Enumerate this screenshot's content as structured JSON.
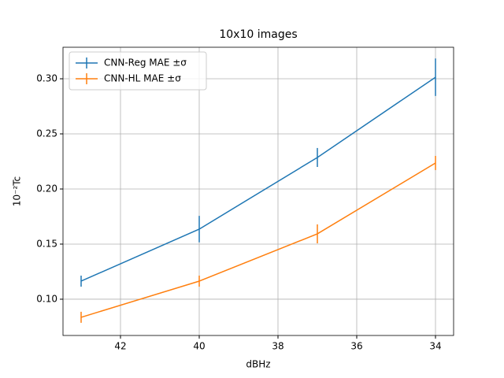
{
  "chart_data": {
    "type": "errorline",
    "title": "10x10 images",
    "x_label": "dBHz",
    "y_label": "10⁻²Tc",
    "x": [
      43,
      40,
      37,
      34
    ],
    "series": [
      {
        "name": "CNN-Reg MAE ±σ",
        "color": "#1f77b4",
        "values": [
          0.1164,
          0.1636,
          0.2286,
          0.3014
        ],
        "errors": [
          0.005,
          0.012,
          0.0086,
          0.017
        ]
      },
      {
        "name": "CNN-HL MAE ±σ",
        "color": "#ff7f0e",
        "values": [
          0.0836,
          0.1164,
          0.1593,
          0.2236
        ],
        "errors": [
          0.005,
          0.005,
          0.0086,
          0.0064
        ]
      }
    ],
    "xlim": [
      43.46,
      33.54
    ],
    "xticks": [
      42,
      40,
      38,
      36,
      34
    ],
    "ylim": [
      0.0671,
      0.3286
    ],
    "yticks": [
      {
        "value": 0.1,
        "label": "0.10"
      },
      0.15,
      {
        "value": 0.2,
        "label": "0.20"
      },
      0.25,
      {
        "value": 0.3,
        "label": "0.30"
      }
    ],
    "grid": true,
    "legend": "upper left"
  }
}
